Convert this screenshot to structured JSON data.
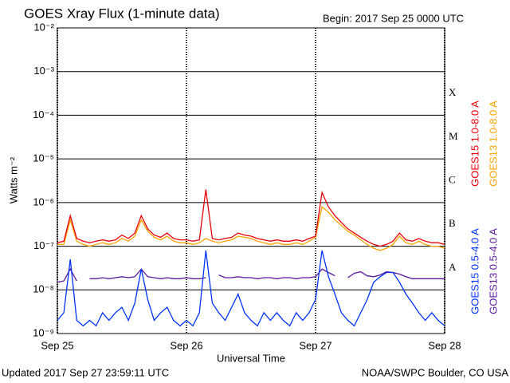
{
  "chart_data": {
    "type": "line",
    "title": "GOES Xray Flux (1-minute data)",
    "subtitle": "Begin:  2017 Sep 25 0000 UTC",
    "x_label": "Universal Time",
    "y_label": "Watts m⁻²",
    "log_y": true,
    "grid": true,
    "footer_left": "Updated 2017 Sep 27 23:59:11 UTC",
    "footer_right": "NOAA/SWPC Boulder, CO USA",
    "annotations": [
      "X",
      "M",
      "C",
      "B",
      "A"
    ],
    "xlim": [
      0,
      3
    ],
    "xticks": [
      {
        "value": 0,
        "label": "Sep 25"
      },
      {
        "value": 1,
        "label": "Sep 26"
      },
      {
        "value": 2,
        "label": "Sep 27"
      },
      {
        "value": 3,
        "label": "Sep 28"
      }
    ],
    "ylim": [
      1e-09,
      0.01
    ],
    "yticks": [
      {
        "value": 1e-09,
        "label": "10⁻⁹"
      },
      {
        "value": 1e-08,
        "label": "10⁻⁸"
      },
      {
        "value": 1e-07,
        "label": "10⁻⁷"
      },
      {
        "value": 1e-06,
        "label": "10⁻⁶"
      },
      {
        "value": 1e-05,
        "label": "10⁻⁵"
      },
      {
        "value": 0.0001,
        "label": "10⁻⁴"
      },
      {
        "value": 0.001,
        "label": "10⁻³"
      },
      {
        "value": 0.01,
        "label": "10⁻²"
      }
    ],
    "x": [
      0,
      0.05,
      0.1,
      0.15,
      0.2,
      0.25,
      0.3,
      0.35,
      0.4,
      0.45,
      0.5,
      0.55,
      0.6,
      0.65,
      0.7,
      0.75,
      0.8,
      0.85,
      0.9,
      0.95,
      1,
      1.05,
      1.1,
      1.15,
      1.2,
      1.25,
      1.3,
      1.35,
      1.4,
      1.45,
      1.5,
      1.55,
      1.6,
      1.65,
      1.7,
      1.75,
      1.8,
      1.85,
      1.9,
      1.95,
      2,
      2.05,
      2.1,
      2.15,
      2.2,
      2.25,
      2.3,
      2.35,
      2.4,
      2.45,
      2.5,
      2.55,
      2.6,
      2.65,
      2.7,
      2.75,
      2.8,
      2.85,
      2.9,
      2.95,
      3
    ],
    "series": [
      {
        "name": "GOES15 1.0-8.0 A",
        "color": "#e8000b",
        "values": [
          1.2e-07,
          1.3e-07,
          5e-07,
          1.5e-07,
          1.3e-07,
          1.2e-07,
          1.3e-07,
          1.4e-07,
          1.3e-07,
          1.4e-07,
          1.8e-07,
          1.5e-07,
          2e-07,
          5e-07,
          2.5e-07,
          1.8e-07,
          1.6e-07,
          2e-07,
          1.5e-07,
          1.4e-07,
          1.4e-07,
          1.3e-07,
          1.4e-07,
          2e-06,
          1.5e-07,
          1.4e-07,
          1.5e-07,
          1.6e-07,
          2e-07,
          1.8e-07,
          1.7e-07,
          1.5e-07,
          1.4e-07,
          1.3e-07,
          1.4e-07,
          1.3e-07,
          1.3e-07,
          1.4e-07,
          1.3e-07,
          1.5e-07,
          1.7e-07,
          1.7e-06,
          8e-07,
          5e-07,
          3.5e-07,
          2.5e-07,
          2e-07,
          1.6e-07,
          1.3e-07,
          1.1e-07,
          1e-07,
          1.1e-07,
          1.3e-07,
          2e-07,
          1.4e-07,
          1.3e-07,
          1.5e-07,
          1.3e-07,
          1.2e-07,
          1.2e-07,
          1.1e-07
        ]
      },
      {
        "name": "GOES13 1.0-8.0 A",
        "color": "#ffa500",
        "values": [
          1.1e-07,
          1.1e-07,
          4e-07,
          1.3e-07,
          1.1e-07,
          1e-07,
          1.1e-07,
          1.2e-07,
          1.1e-07,
          1.2e-07,
          1.5e-07,
          1.3e-07,
          1.7e-07,
          4e-07,
          2.2e-07,
          1.6e-07,
          1.4e-07,
          1.7e-07,
          1.3e-07,
          1.2e-07,
          1.2e-07,
          1.1e-07,
          1.2e-07,
          1.5e-07,
          1.3e-07,
          1.2e-07,
          1.3e-07,
          1.4e-07,
          1.7e-07,
          1.6e-07,
          1.5e-07,
          1.3e-07,
          1.2e-07,
          1.1e-07,
          1.2e-07,
          1.1e-07,
          1.1e-07,
          1.2e-07,
          1.1e-07,
          1.3e-07,
          1.6e-07,
          8e-07,
          6e-07,
          4e-07,
          3e-07,
          2.2e-07,
          1.8e-07,
          1.4e-07,
          1.1e-07,
          9e-08,
          8e-08,
          9e-08,
          1.1e-07,
          1.7e-07,
          1.2e-07,
          1.1e-07,
          1.3e-07,
          1.1e-07,
          1e-07,
          1e-07,
          9e-08
        ]
      },
      {
        "name": "GOES15 0.5-4.0 A",
        "color": "#0033ff",
        "values": [
          2e-09,
          3e-09,
          5e-08,
          2e-09,
          1.5e-09,
          2e-09,
          1.5e-09,
          3e-09,
          2e-09,
          3e-09,
          4e-09,
          2e-09,
          5e-09,
          3e-08,
          6e-09,
          2e-09,
          3e-09,
          4e-09,
          2e-09,
          1.5e-09,
          2e-09,
          1.5e-09,
          3e-09,
          8e-08,
          5e-09,
          3e-09,
          2e-09,
          4e-09,
          8e-09,
          3e-09,
          2e-09,
          1.5e-09,
          3e-09,
          2e-09,
          3e-09,
          2e-09,
          1.5e-09,
          3e-09,
          2e-09,
          3e-09,
          6e-09,
          8e-08,
          2e-08,
          8e-09,
          3e-09,
          2e-09,
          1.5e-09,
          3e-09,
          6e-09,
          1.5e-08,
          2e-08,
          2.5e-08,
          2.5e-08,
          1.5e-08,
          8e-09,
          5e-09,
          3e-09,
          2e-09,
          3e-09,
          2e-09,
          1.5e-09
        ]
      },
      {
        "name": "GOES13 0.5-4.0 A",
        "color": "#5b1a9e",
        "values": [
          1.5e-08,
          1.6e-08,
          3e-08,
          1.6e-08,
          null,
          1.8e-08,
          1.8e-08,
          1.9e-08,
          1.8e-08,
          1.9e-08,
          2e-08,
          1.9e-08,
          2e-08,
          3e-08,
          2e-08,
          1.9e-08,
          1.8e-08,
          1.9e-08,
          1.8e-08,
          1.8e-08,
          1.9e-08,
          1.8e-08,
          1.8e-08,
          1.9e-08,
          null,
          2.2e-08,
          1.9e-08,
          1.9e-08,
          2e-08,
          1.9e-08,
          1.9e-08,
          1.8e-08,
          1.9e-08,
          1.9e-08,
          1.8e-08,
          1.9e-08,
          1.9e-08,
          1.8e-08,
          1.9e-08,
          1.9e-08,
          2e-08,
          3e-08,
          2.5e-08,
          2.1e-08,
          null,
          1.9e-08,
          2.4e-08,
          2.6e-08,
          2.1e-08,
          2e-08,
          2.2e-08,
          2.6e-08,
          2.5e-08,
          2.3e-08,
          2e-08,
          1.8e-08,
          1.8e-08,
          1.8e-08,
          1.8e-08,
          1.8e-08,
          1.8e-08
        ]
      }
    ]
  }
}
